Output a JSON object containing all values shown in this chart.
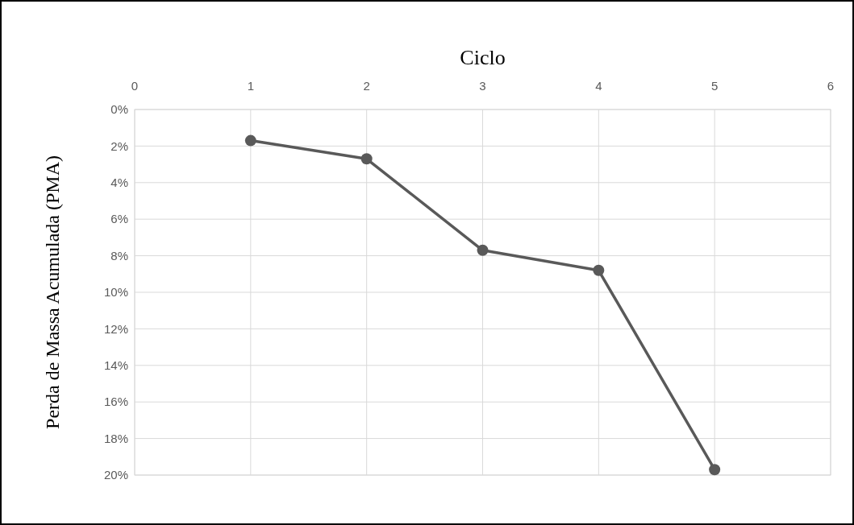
{
  "chart_data": {
    "type": "line",
    "xlabel": "Ciclo",
    "ylabel": "Perda de Massa Acumulada (PMA)",
    "x": [
      1,
      2,
      3,
      4,
      5
    ],
    "series": [
      {
        "color": "#595959",
        "values": [
          1.7,
          2.7,
          7.7,
          8.8,
          19.7
        ]
      }
    ],
    "xlim": [
      0,
      6
    ],
    "xticks": [
      0,
      1,
      2,
      3,
      4,
      5,
      6
    ],
    "ylim": [
      20,
      0
    ],
    "yticks": [
      {
        "value": 0,
        "label": "0%"
      },
      {
        "value": 2,
        "label": "2%"
      },
      {
        "value": 4,
        "label": "4%"
      },
      {
        "value": 6,
        "label": "6%"
      },
      {
        "value": 8,
        "label": "8%"
      },
      {
        "value": 10,
        "label": "10%"
      },
      {
        "value": 12,
        "label": "12%"
      },
      {
        "value": 14,
        "label": "14%"
      },
      {
        "value": 16,
        "label": "16%"
      },
      {
        "value": 18,
        "label": "18%"
      },
      {
        "value": 20,
        "label": "20%"
      }
    ],
    "grid": true,
    "marker": "circle",
    "line_style": "solid"
  }
}
